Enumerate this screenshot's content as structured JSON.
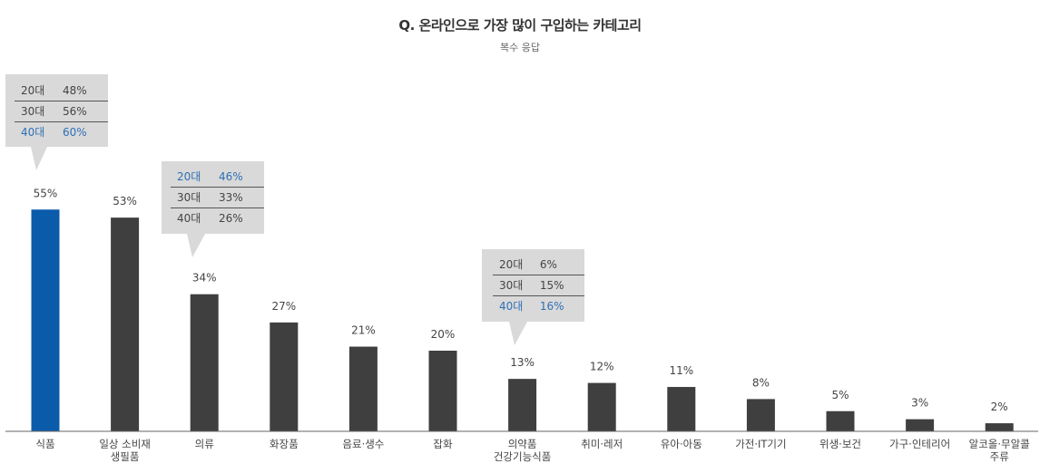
{
  "title": "Q. 온라인으로 가장 많이 구입하는 카테고리",
  "subtitle": "복수 응답",
  "colors": {
    "highlight": "#0b5bab",
    "bar": "#3f3f3f",
    "callout_bg": "#d9d9d9",
    "callout_highlight": "#2f6fb5"
  },
  "chart_data": {
    "type": "bar",
    "categories": [
      [
        "식품"
      ],
      [
        "일상 소비재",
        "생필품"
      ],
      [
        "의류"
      ],
      [
        "화장품"
      ],
      [
        "음료·생수"
      ],
      [
        "잡화"
      ],
      [
        "의약품",
        "건강기능식품"
      ],
      [
        "취미·레저"
      ],
      [
        "유아·아동"
      ],
      [
        "가전·IT기기"
      ],
      [
        "위생·보건"
      ],
      [
        "가구·인테리어"
      ],
      [
        "알코올·무알콜",
        "주류"
      ]
    ],
    "values": [
      55,
      53,
      34,
      27,
      21,
      20,
      13,
      12,
      11,
      8,
      5,
      3,
      2
    ],
    "value_labels": [
      "55%",
      "53%",
      "34%",
      "27%",
      "21%",
      "20%",
      "13%",
      "12%",
      "11%",
      "8%",
      "5%",
      "3%",
      "2%"
    ],
    "highlight_index": 0,
    "ylim": [
      0,
      60
    ],
    "grid": false
  },
  "callouts": {
    "food": [
      {
        "age": "20대",
        "pct": "48%"
      },
      {
        "age": "30대",
        "pct": "56%"
      },
      {
        "age": "40대",
        "pct": "60%"
      }
    ],
    "clothing": [
      {
        "age": "20대",
        "pct": "46%"
      },
      {
        "age": "30대",
        "pct": "33%"
      },
      {
        "age": "40대",
        "pct": "26%"
      }
    ],
    "medicine": [
      {
        "age": "20대",
        "pct": "6%"
      },
      {
        "age": "30대",
        "pct": "15%"
      },
      {
        "age": "40대",
        "pct": "16%"
      }
    ]
  }
}
